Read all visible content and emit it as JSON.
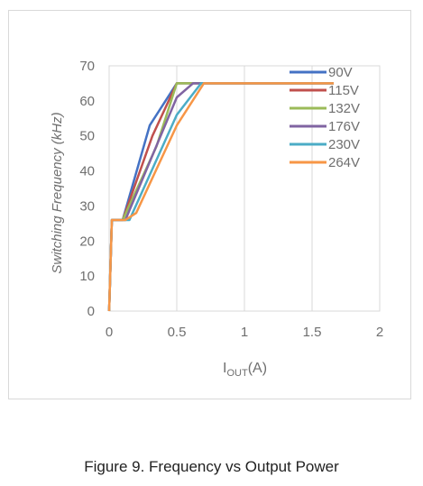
{
  "chart_data": {
    "type": "line",
    "title": "",
    "xlabel": "I",
    "xlabel_sub": "OUT",
    "xlabel_unit": "(A)",
    "ylabel": "Switching Frequency (kHz)",
    "xlim": [
      0,
      2
    ],
    "ylim": [
      0,
      70
    ],
    "x_ticks": [
      "0",
      "0.5",
      "1",
      "1.5",
      "2"
    ],
    "y_ticks": [
      "0",
      "10",
      "20",
      "30",
      "40",
      "50",
      "60",
      "70"
    ],
    "x_tick_values": [
      0,
      0.5,
      1,
      1.5,
      2
    ],
    "y_tick_values": [
      0,
      10,
      20,
      30,
      40,
      50,
      60,
      70
    ],
    "grid": "vertical",
    "legend_position": "top-right",
    "series": [
      {
        "name": "90V",
        "color": "#4472c4",
        "points": [
          [
            0,
            0
          ],
          [
            0.02,
            26
          ],
          [
            0.1,
            26
          ],
          [
            0.3,
            53
          ],
          [
            0.5,
            65
          ],
          [
            1.66,
            65
          ]
        ]
      },
      {
        "name": "115V",
        "color": "#c0504d",
        "points": [
          [
            0,
            0
          ],
          [
            0.02,
            26
          ],
          [
            0.1,
            26
          ],
          [
            0.32,
            50
          ],
          [
            0.5,
            65
          ],
          [
            1.66,
            65
          ]
        ]
      },
      {
        "name": "132V",
        "color": "#9bbb59",
        "points": [
          [
            0,
            0
          ],
          [
            0.02,
            26
          ],
          [
            0.1,
            26
          ],
          [
            0.35,
            47
          ],
          [
            0.5,
            65
          ],
          [
            1.66,
            65
          ]
        ]
      },
      {
        "name": "176V",
        "color": "#8064a2",
        "points": [
          [
            0,
            0
          ],
          [
            0.02,
            26
          ],
          [
            0.12,
            26
          ],
          [
            0.5,
            61
          ],
          [
            0.62,
            65
          ],
          [
            1.66,
            65
          ]
        ]
      },
      {
        "name": "230V",
        "color": "#4bacc6",
        "points": [
          [
            0,
            0
          ],
          [
            0.02,
            26
          ],
          [
            0.15,
            26
          ],
          [
            0.5,
            56
          ],
          [
            0.68,
            65
          ],
          [
            1.66,
            65
          ]
        ]
      },
      {
        "name": "264V",
        "color": "#f79646",
        "points": [
          [
            0,
            0
          ],
          [
            0.02,
            26
          ],
          [
            0.12,
            26
          ],
          [
            0.2,
            28
          ],
          [
            0.5,
            53
          ],
          [
            0.7,
            65
          ],
          [
            1.66,
            65
          ]
        ]
      }
    ]
  },
  "caption": "Figure 9. Frequency vs Output Power"
}
